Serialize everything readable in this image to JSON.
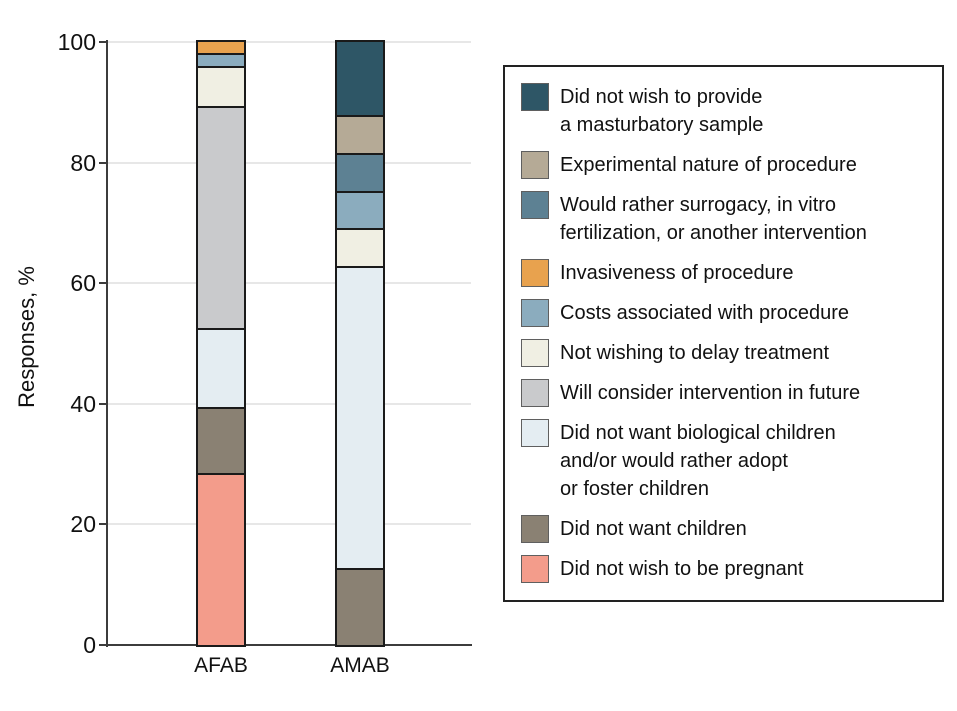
{
  "figure": {
    "y_axis": {
      "title": "Responses, %",
      "ticks": [
        0,
        20,
        40,
        60,
        80,
        100
      ],
      "max": 100
    },
    "x_axis": {
      "categories": [
        "AFAB",
        "AMAB"
      ]
    }
  },
  "chart_data": {
    "type": "bar",
    "stacked": true,
    "title": "",
    "xlabel": "",
    "ylabel": "Responses, %",
    "ylim": [
      0,
      100
    ],
    "grid": true,
    "legend_position": "right",
    "categories": [
      "AFAB",
      "AMAB"
    ],
    "series": [
      {
        "name": "Did not wish to provide a masturbatory sample",
        "legend_lines": [
          "Did not wish to provide",
          "a masturbatory sample"
        ],
        "color": "#2E5666",
        "values": [
          0,
          12.5
        ]
      },
      {
        "name": "Experimental nature of procedure",
        "legend_lines": [
          "Experimental nature of procedure"
        ],
        "color": "#B5AA96",
        "values": [
          0,
          6.25
        ]
      },
      {
        "name": "Would rather surrogacy, in vitro fertilization, or another intervention",
        "legend_lines": [
          "Would rather surrogacy, in vitro",
          "fertilization, or another intervention"
        ],
        "color": "#5D8193",
        "values": [
          0,
          6.25
        ]
      },
      {
        "name": "Invasiveness of procedure",
        "legend_lines": [
          "Invasiveness of procedure"
        ],
        "color": "#E8A24E",
        "values": [
          2.17,
          0
        ]
      },
      {
        "name": "Costs associated with procedure",
        "legend_lines": [
          "Costs associated with procedure"
        ],
        "color": "#8BACBE",
        "values": [
          2.17,
          6.25
        ]
      },
      {
        "name": "Not wishing to delay treatment",
        "legend_lines": [
          "Not wishing to delay treatment"
        ],
        "color": "#F0EFE3",
        "values": [
          6.52,
          6.25
        ]
      },
      {
        "name": "Will consider intervention in future",
        "legend_lines": [
          "Will consider intervention in future"
        ],
        "color": "#C9CACC",
        "values": [
          36.96,
          0
        ]
      },
      {
        "name": "Did not want biological children and/or would rather adopt or foster children",
        "legend_lines": [
          "Did not want biological children",
          "and/or would rather adopt",
          "or foster children"
        ],
        "color": "#E4EDF2",
        "values": [
          13.04,
          50
        ]
      },
      {
        "name": "Did not want children",
        "legend_lines": [
          "Did not want children"
        ],
        "color": "#8A8173",
        "values": [
          10.87,
          12.5
        ]
      },
      {
        "name": "Did not wish to be pregnant",
        "legend_lines": [
          "Did not wish to be pregnant"
        ],
        "color": "#F39C8B",
        "values": [
          28.26,
          0
        ]
      }
    ]
  }
}
